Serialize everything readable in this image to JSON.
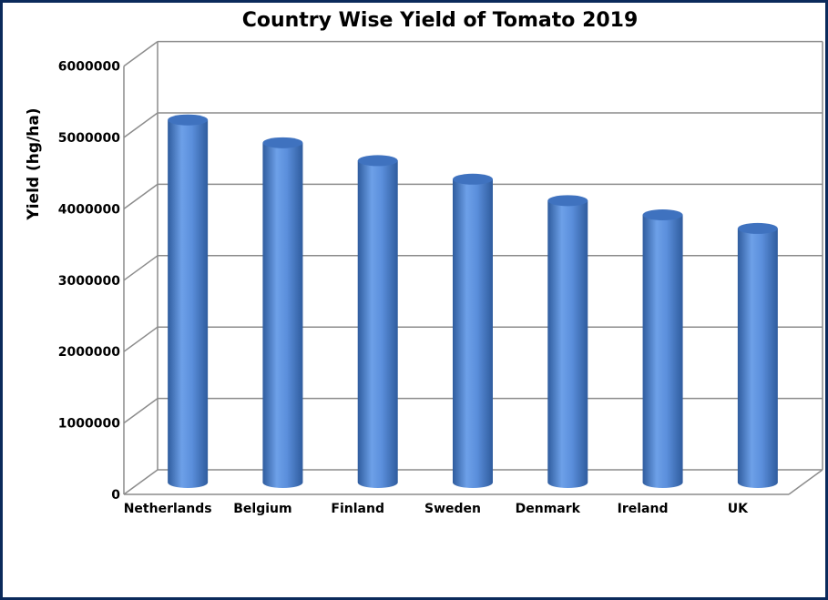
{
  "chart_data": {
    "type": "bar",
    "title": "Country Wise Yield of Tomato 2019",
    "xlabel": "",
    "ylabel": "Yield (hg/ha)",
    "categories": [
      "Netherlands",
      "Belgium",
      "Finland",
      "Sweden",
      "Denmark",
      "Ireland",
      "UK"
    ],
    "values": [
      5080000,
      4760000,
      4510000,
      4250000,
      3950000,
      3750000,
      3560000
    ],
    "ylim": [
      0,
      6000000
    ],
    "yticks": [
      "0",
      "1000000",
      "2000000",
      "3000000",
      "4000000",
      "5000000",
      "6000000"
    ],
    "grid": true,
    "legend": "none",
    "bar_shape": "3d-cylinder",
    "colors": {
      "bar": "#4a7fcc",
      "bar_light": "#6da0e8",
      "bar_dark": "#2f5c9e",
      "grid": "#8c8c8c",
      "border": "#0b2a5b"
    }
  }
}
